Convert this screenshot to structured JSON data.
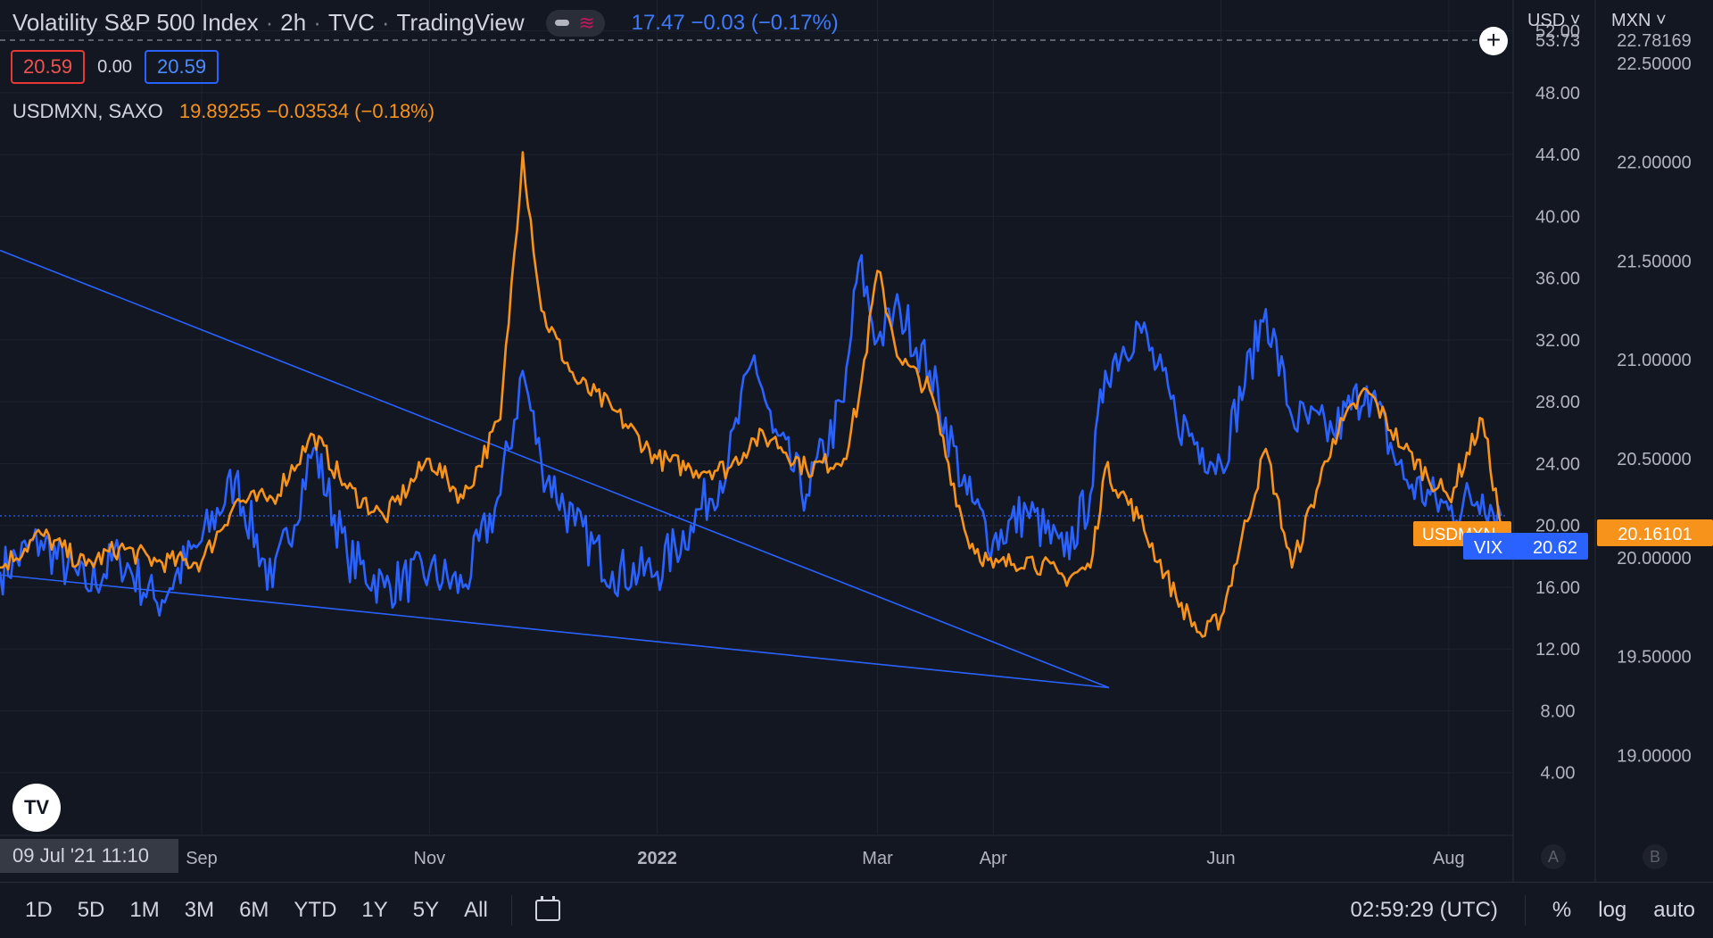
{
  "header": {
    "title": "Volatility S&P 500 Index",
    "interval": "2h",
    "exchange": "TVC",
    "source": "TradingView",
    "quote": "17.47  −0.03 (−0.17%)"
  },
  "values_row": {
    "left_box": "20.59",
    "middle": "0.00",
    "right_box": "20.59"
  },
  "series2_legend": {
    "symbol": "USDMXN, SAXO",
    "quote": "19.89255  −0.03534 (−0.18%)"
  },
  "axis_currency": {
    "left": "USD",
    "right": "MXN"
  },
  "crosshair_date": "09 Jul '21   11:10",
  "scale_buttons": {
    "a": "A",
    "b": "B"
  },
  "bottom_bar": {
    "timeframes": [
      "1D",
      "5D",
      "1M",
      "3M",
      "6M",
      "YTD",
      "1Y",
      "5Y",
      "All"
    ],
    "clock": "02:59:29 (UTC)",
    "percent": "%",
    "log": "log",
    "auto": "auto"
  },
  "colors": {
    "vix": "#2962ff",
    "usdmxn": "#f7931a",
    "background": "#131722",
    "grid": "#1f2330"
  },
  "chart_data": {
    "type": "line",
    "x_tick_labels": [
      "Sep",
      "Nov",
      "2022",
      "Mar",
      "Apr",
      "Jun",
      "Aug"
    ],
    "x_ticks_dates": [
      "2021-09-01",
      "2021-11-01",
      "2022-01-01",
      "2022-03-01",
      "2022-04-01",
      "2022-06-01",
      "2022-08-01"
    ],
    "y_axis_left": {
      "ticks": [
        4,
        8,
        12,
        16,
        20,
        24,
        28,
        32,
        36,
        40,
        44,
        48,
        52
      ],
      "tick_labels": [
        "4.00",
        "8.00",
        "12.00",
        "16.00",
        "20.00",
        "24.00",
        "28.00",
        "32.00",
        "36.00",
        "40.00",
        "44.00",
        "48.00",
        "52.00"
      ],
      "top_label": "53.73",
      "range": [
        0,
        54
      ]
    },
    "y_axis_right": {
      "ticks": [
        19.0,
        19.5,
        20.0,
        20.5,
        21.0,
        21.5,
        22.0,
        22.5
      ],
      "tick_labels": [
        "19.00000",
        "19.50000",
        "20.00000",
        "20.50000",
        "21.00000",
        "21.50000",
        "22.00000",
        "22.50000"
      ],
      "top_label": "22.78169",
      "range": [
        18.6,
        22.82
      ]
    },
    "last_price_labels": {
      "usdmxn_name": "USDMXN",
      "usdmxn": "20.16101",
      "vix_name": "VIX",
      "vix": "20.62"
    },
    "series": [
      {
        "name": "VIX",
        "axis": "left",
        "x": [
          "2021-07-09",
          "2021-07-20",
          "2021-08-01",
          "2021-08-10",
          "2021-08-20",
          "2021-09-01",
          "2021-09-10",
          "2021-09-20",
          "2021-10-01",
          "2021-10-10",
          "2021-10-20",
          "2021-11-01",
          "2021-11-10",
          "2021-11-20",
          "2021-11-26",
          "2021-12-01",
          "2021-12-10",
          "2021-12-20",
          "2022-01-01",
          "2022-01-10",
          "2022-01-20",
          "2022-01-27",
          "2022-02-01",
          "2022-02-10",
          "2022-02-20",
          "2022-02-24",
          "2022-03-01",
          "2022-03-07",
          "2022-03-15",
          "2022-03-25",
          "2022-04-01",
          "2022-04-10",
          "2022-04-20",
          "2022-04-27",
          "2022-05-01",
          "2022-05-10",
          "2022-05-20",
          "2022-05-27",
          "2022-06-01",
          "2022-06-13",
          "2022-06-20",
          "2022-07-01",
          "2022-07-10",
          "2022-07-20",
          "2022-08-01",
          "2022-08-10",
          "2022-08-15"
        ],
        "y": [
          17,
          19,
          16,
          18,
          15,
          19,
          23,
          16,
          25,
          18,
          16,
          17,
          16,
          22,
          30,
          24,
          20,
          17,
          17,
          20,
          24,
          31,
          26,
          22,
          28,
          37,
          32,
          34,
          30,
          22,
          19,
          21,
          18,
          22,
          30,
          33,
          27,
          25,
          24,
          34,
          27,
          26,
          29,
          23,
          21,
          22,
          20.6
        ]
      },
      {
        "name": "USDMXN",
        "axis": "right",
        "x": [
          "2021-07-09",
          "2021-07-20",
          "2021-08-01",
          "2021-08-10",
          "2021-08-20",
          "2021-09-01",
          "2021-09-10",
          "2021-09-20",
          "2021-10-01",
          "2021-10-10",
          "2021-10-20",
          "2021-11-01",
          "2021-11-10",
          "2021-11-20",
          "2021-11-26",
          "2021-12-01",
          "2021-12-10",
          "2021-12-20",
          "2022-01-01",
          "2022-01-10",
          "2022-01-20",
          "2022-01-27",
          "2022-02-01",
          "2022-02-10",
          "2022-02-20",
          "2022-02-24",
          "2022-03-01",
          "2022-03-07",
          "2022-03-15",
          "2022-03-25",
          "2022-04-01",
          "2022-04-10",
          "2022-04-20",
          "2022-04-27",
          "2022-05-01",
          "2022-05-10",
          "2022-05-20",
          "2022-05-27",
          "2022-06-01",
          "2022-06-13",
          "2022-06-20",
          "2022-07-01",
          "2022-07-10",
          "2022-07-20",
          "2022-08-01",
          "2022-08-10",
          "2022-08-15"
        ],
        "y": [
          19.95,
          20.12,
          19.96,
          20.05,
          19.98,
          19.98,
          20.28,
          20.3,
          20.62,
          20.35,
          20.2,
          20.5,
          20.3,
          20.7,
          22.05,
          21.25,
          20.9,
          20.75,
          20.5,
          20.45,
          20.45,
          20.6,
          20.6,
          20.45,
          20.5,
          20.8,
          21.45,
          21.0,
          20.85,
          20.1,
          19.95,
          20.0,
          19.9,
          19.95,
          20.45,
          20.2,
          19.8,
          19.6,
          19.7,
          20.55,
          19.95,
          20.6,
          20.85,
          20.55,
          20.3,
          20.7,
          20.16
        ]
      }
    ],
    "trendlines": [
      {
        "name": "upper",
        "start": {
          "x": "2021-07-09",
          "y": 37.8
        },
        "end": {
          "x": "2022-05-02",
          "y": 9.5
        }
      },
      {
        "name": "lower",
        "start": {
          "x": "2021-07-09",
          "y": 16.8
        },
        "end": {
          "x": "2022-05-02",
          "y": 9.5
        }
      }
    ]
  }
}
